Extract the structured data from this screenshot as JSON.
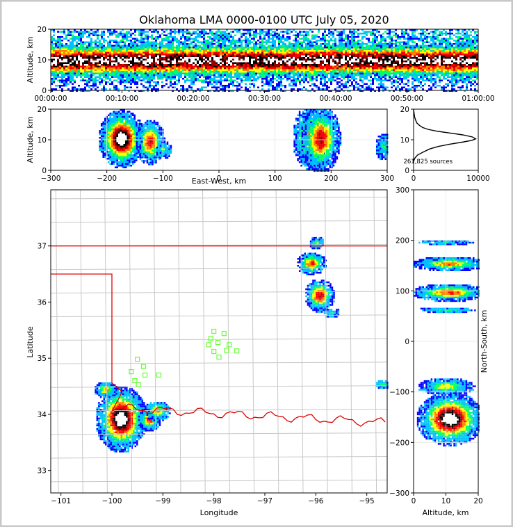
{
  "title": "Oklahoma LMA 0000-0100 UTC July 05, 2020",
  "colors": {
    "density_scale": [
      "#0000ff",
      "#00bfff",
      "#00ff66",
      "#ffff00",
      "#ff8000",
      "#ff0000",
      "#990000",
      "#000000",
      "#ffffff"
    ],
    "state_border": "#e00000",
    "county_lines": "#c8c8c8",
    "station_markers": "#66ff33",
    "frame_outer": "#c8c8c8"
  },
  "chart_data": [
    {
      "type": "heatmap",
      "panel": "altitude-time",
      "xlabel": "",
      "ylabel": "Altitude, km",
      "xticks": [
        "00:00:00",
        "00:10:00",
        "00:20:00",
        "00:30:00",
        "00:40:00",
        "00:50:00",
        "01:00:00"
      ],
      "xlim_minutes": [
        0,
        60
      ],
      "yticks": [
        0,
        10,
        20
      ],
      "ylim": [
        0,
        20
      ],
      "core_altitude_km": 10
    },
    {
      "type": "heatmap",
      "panel": "altitude-east-west",
      "xlabel": "East-West, km",
      "ylabel": "Altitude, km",
      "xticks": [
        -300,
        -200,
        -100,
        0,
        100,
        200,
        300
      ],
      "xlim": [
        -300,
        300
      ],
      "yticks": [
        0,
        10,
        20
      ],
      "ylim": [
        0,
        20
      ],
      "clusters": [
        {
          "x": -175,
          "alt": 10.5,
          "sx": 14,
          "sy": 3.2,
          "intensity": 1.0
        },
        {
          "x": -124,
          "alt": 9.5,
          "sx": 9,
          "sy": 2.5,
          "intensity": 0.6
        },
        {
          "x": -100,
          "alt": 7.0,
          "sx": 5,
          "sy": 1.0,
          "intensity": 0.25
        },
        {
          "x": 160,
          "alt": 11.0,
          "sx": 10,
          "sy": 3.5,
          "intensity": 0.55
        },
        {
          "x": 180,
          "alt": 10.5,
          "sx": 12,
          "sy": 3.8,
          "intensity": 0.65
        },
        {
          "x": 292,
          "alt": 8.0,
          "sx": 5,
          "sy": 1.5,
          "intensity": 0.2
        }
      ]
    },
    {
      "type": "line",
      "panel": "altitude-histogram",
      "annotation": "261,825 sources",
      "xticks": [
        0,
        10000
      ],
      "xlim": [
        0,
        10000
      ],
      "yticks": [
        0,
        10,
        20
      ],
      "ylim": [
        0,
        20
      ],
      "x": [
        0,
        200,
        600,
        1500,
        2500,
        3800,
        5500,
        7500,
        9000,
        9600,
        9100,
        7600,
        5600,
        3600,
        2200,
        1400,
        900,
        500,
        300,
        150,
        50,
        0
      ],
      "y": [
        3,
        4,
        5,
        6,
        7,
        7.8,
        8.5,
        9.2,
        9.8,
        10.3,
        10.9,
        11.6,
        12.2,
        12.8,
        13.4,
        14.0,
        14.7,
        15.5,
        16.5,
        17.5,
        19,
        20
      ]
    },
    {
      "type": "heatmap",
      "panel": "plan-view-map",
      "xlabel": "Longitude",
      "ylabel": "Latitude",
      "xticks": [
        -101,
        -100,
        -99,
        -98,
        -97,
        -96,
        -95
      ],
      "xlim": [
        -101.2,
        -94.6
      ],
      "yticks": [
        33,
        34,
        35,
        36,
        37
      ],
      "ylim": [
        32.6,
        38.0
      ],
      "clusters": [
        {
          "lon": -99.83,
          "lat": 33.93,
          "sx": 0.17,
          "sy": 0.2,
          "intensity": 1.0
        },
        {
          "lon": -99.28,
          "lat": 33.92,
          "sx": 0.08,
          "sy": 0.07,
          "intensity": 0.6
        },
        {
          "lon": -99.12,
          "lat": 34.07,
          "sx": 0.09,
          "sy": 0.06,
          "intensity": 0.45
        },
        {
          "lon": -100.13,
          "lat": 34.45,
          "sx": 0.08,
          "sy": 0.05,
          "intensity": 0.4
        },
        {
          "lon": -95.94,
          "lat": 36.13,
          "sx": 0.1,
          "sy": 0.1,
          "intensity": 0.65
        },
        {
          "lon": -96.1,
          "lat": 36.7,
          "sx": 0.1,
          "sy": 0.07,
          "intensity": 0.55
        },
        {
          "lon": -96.0,
          "lat": 37.07,
          "sx": 0.05,
          "sy": 0.04,
          "intensity": 0.3
        },
        {
          "lon": -95.7,
          "lat": 35.82,
          "sx": 0.06,
          "sy": 0.03,
          "intensity": 0.2
        },
        {
          "lon": -94.7,
          "lat": 34.55,
          "sx": 0.05,
          "sy": 0.03,
          "intensity": 0.2
        }
      ],
      "stations": [
        {
          "lon": -99.5,
          "lat": 34.98
        },
        {
          "lon": -99.38,
          "lat": 34.85
        },
        {
          "lon": -99.62,
          "lat": 34.76
        },
        {
          "lon": -99.35,
          "lat": 34.7
        },
        {
          "lon": -99.55,
          "lat": 34.6
        },
        {
          "lon": -99.48,
          "lat": 34.53
        },
        {
          "lon": -99.08,
          "lat": 34.7
        },
        {
          "lon": -98.0,
          "lat": 35.48
        },
        {
          "lon": -97.8,
          "lat": 35.44
        },
        {
          "lon": -98.06,
          "lat": 35.35
        },
        {
          "lon": -97.92,
          "lat": 35.28
        },
        {
          "lon": -98.1,
          "lat": 35.24
        },
        {
          "lon": -97.7,
          "lat": 35.24
        },
        {
          "lon": -98.0,
          "lat": 35.12
        },
        {
          "lon": -97.75,
          "lat": 35.14
        },
        {
          "lon": -97.55,
          "lat": 35.13
        },
        {
          "lon": -97.9,
          "lat": 35.02
        }
      ]
    },
    {
      "type": "heatmap",
      "panel": "north-south-altitude",
      "xlabel": "Altitude, km",
      "ylabel": "North-South, km",
      "xticks": [
        0,
        10,
        20
      ],
      "xlim": [
        0,
        20
      ],
      "yticks": [
        -300,
        -200,
        -100,
        0,
        100,
        200,
        300
      ],
      "ylim": [
        -300,
        300
      ],
      "clusters": [
        {
          "alt": 11,
          "y": -152,
          "sx": 3.5,
          "sy": 18,
          "intensity": 1.0
        },
        {
          "alt": 10,
          "y": -88,
          "sx": 3.0,
          "sy": 6,
          "intensity": 0.35
        },
        {
          "alt": 11,
          "y": 98,
          "sx": 4.0,
          "sy": 6,
          "intensity": 0.55
        },
        {
          "alt": 11,
          "y": 155,
          "sx": 4.0,
          "sy": 5,
          "intensity": 0.5
        },
        {
          "alt": 10,
          "y": 64,
          "sx": 3.0,
          "sy": 2,
          "intensity": 0.2
        },
        {
          "alt": 10,
          "y": 198,
          "sx": 3.0,
          "sy": 2,
          "intensity": 0.15
        }
      ]
    }
  ]
}
